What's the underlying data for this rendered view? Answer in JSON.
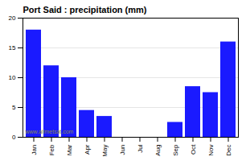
{
  "chart_data": {
    "type": "bar",
    "title": "Port Said : precipitation (mm)",
    "categories": [
      "Jan",
      "Feb",
      "Mar",
      "Apr",
      "May",
      "Jun",
      "Jul",
      "Aug",
      "Sep",
      "Oct",
      "Nov",
      "Dec"
    ],
    "values": [
      18,
      12,
      10,
      4.5,
      3.5,
      0,
      0,
      0,
      2.5,
      8.5,
      7.5,
      16
    ],
    "color": "#1a1aff",
    "ylim": [
      0,
      20
    ],
    "yticks": [
      0,
      5,
      10,
      15,
      20
    ],
    "grid": true,
    "annotations": [
      "www.allmetsat.com"
    ]
  }
}
